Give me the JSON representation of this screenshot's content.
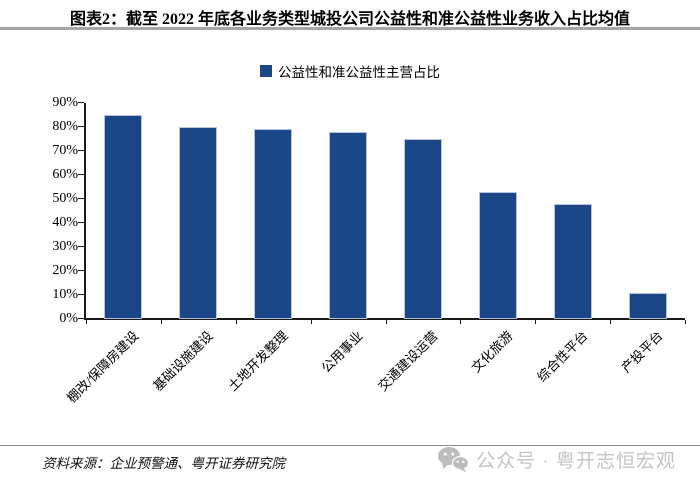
{
  "header": {
    "title": "图表2：截至 2022 年底各业务类型城投公司公益性和准公益性业务收入占比均值"
  },
  "chart_data": {
    "type": "bar",
    "title": "截至 2022 年底各业务类型城投公司公益性和准公益性业务收入占比均值",
    "categories": [
      "棚改/保障房建设",
      "基础设施建设",
      "土地开发整理",
      "公用事业",
      "交通建设运营",
      "文化旅游",
      "综合性平台",
      "产投平台"
    ],
    "values": [
      85,
      80,
      79,
      78,
      75,
      53,
      48,
      11
    ],
    "unit": "%",
    "xlabel": "",
    "ylabel": "",
    "ylim": [
      0,
      90
    ],
    "ytick_step": 10,
    "ytick_labels": [
      "0%",
      "10%",
      "20%",
      "30%",
      "40%",
      "50%",
      "60%",
      "70%",
      "80%",
      "90%"
    ],
    "legend": [
      "公益性和准公益性主营占比"
    ],
    "legend_position": "top-center",
    "grid": false,
    "bar_color": "#1B4789"
  },
  "footer": {
    "source": "资料来源：企业预警通、粤开证券研究院",
    "watermark_text": "公众号 · 粤开志恒宏观"
  },
  "colors": {
    "bar": "#1B4789",
    "title_rule": "#A6A6A6",
    "footer_rule": "#8C8C8C",
    "watermark": "#C4C4C4",
    "axis": "#1A1A1A"
  }
}
